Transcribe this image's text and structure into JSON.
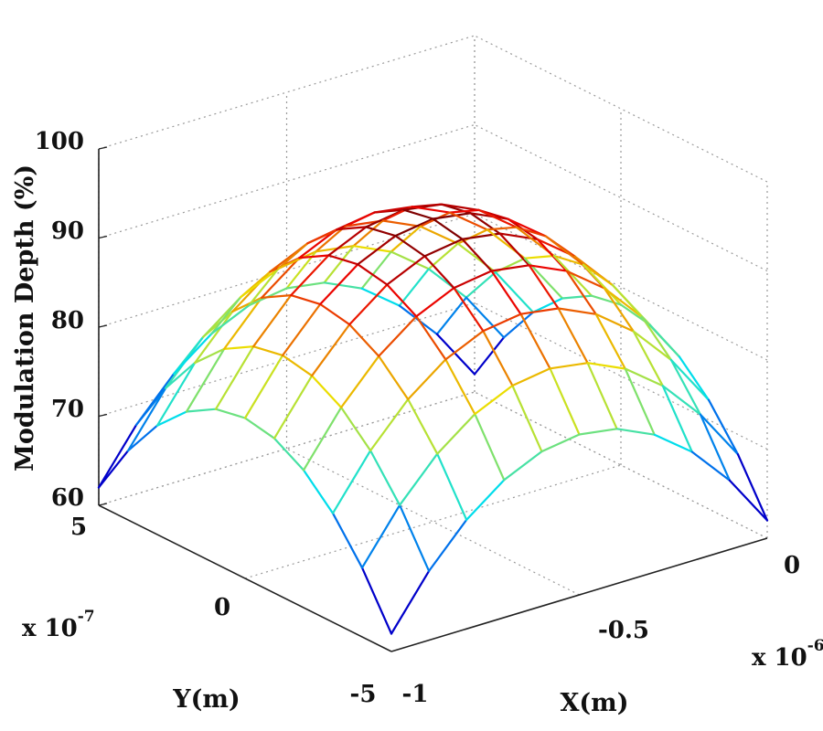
{
  "chart_data": {
    "type": "surface",
    "surface_style": "colored wireframe mesh (jet colormap)",
    "zlabel": "Modulation Depth (%)",
    "xlabel": "X(m)",
    "ylabel": "Y(m)",
    "x_multiplier": "x 10",
    "x_exponent": "-6",
    "y_multiplier": "x 10",
    "y_exponent": "-7",
    "xlim": [
      -1e-06,
      0
    ],
    "ylim": [
      -5e-07,
      5e-07
    ],
    "zlim": [
      60,
      100
    ],
    "x_ticks": [
      {
        "value": -1e-06,
        "label": "-1"
      },
      {
        "value": -5e-07,
        "label": "-0.5"
      },
      {
        "value": 0,
        "label": "0"
      }
    ],
    "y_ticks": [
      {
        "value": -5e-07,
        "label": "-5"
      },
      {
        "value": 0,
        "label": "0"
      },
      {
        "value": 5e-07,
        "label": "5"
      }
    ],
    "z_ticks": [
      {
        "value": 60,
        "label": "60"
      },
      {
        "value": 70,
        "label": "70"
      },
      {
        "value": 80,
        "label": "80"
      },
      {
        "value": 90,
        "label": "90"
      },
      {
        "value": 100,
        "label": "100"
      }
    ],
    "grid": true,
    "mesh": {
      "x_points": 11,
      "y_points": 11,
      "peak_value": 94,
      "peak_location": [
        -5e-07,
        0
      ],
      "corner_value": 62
    }
  }
}
